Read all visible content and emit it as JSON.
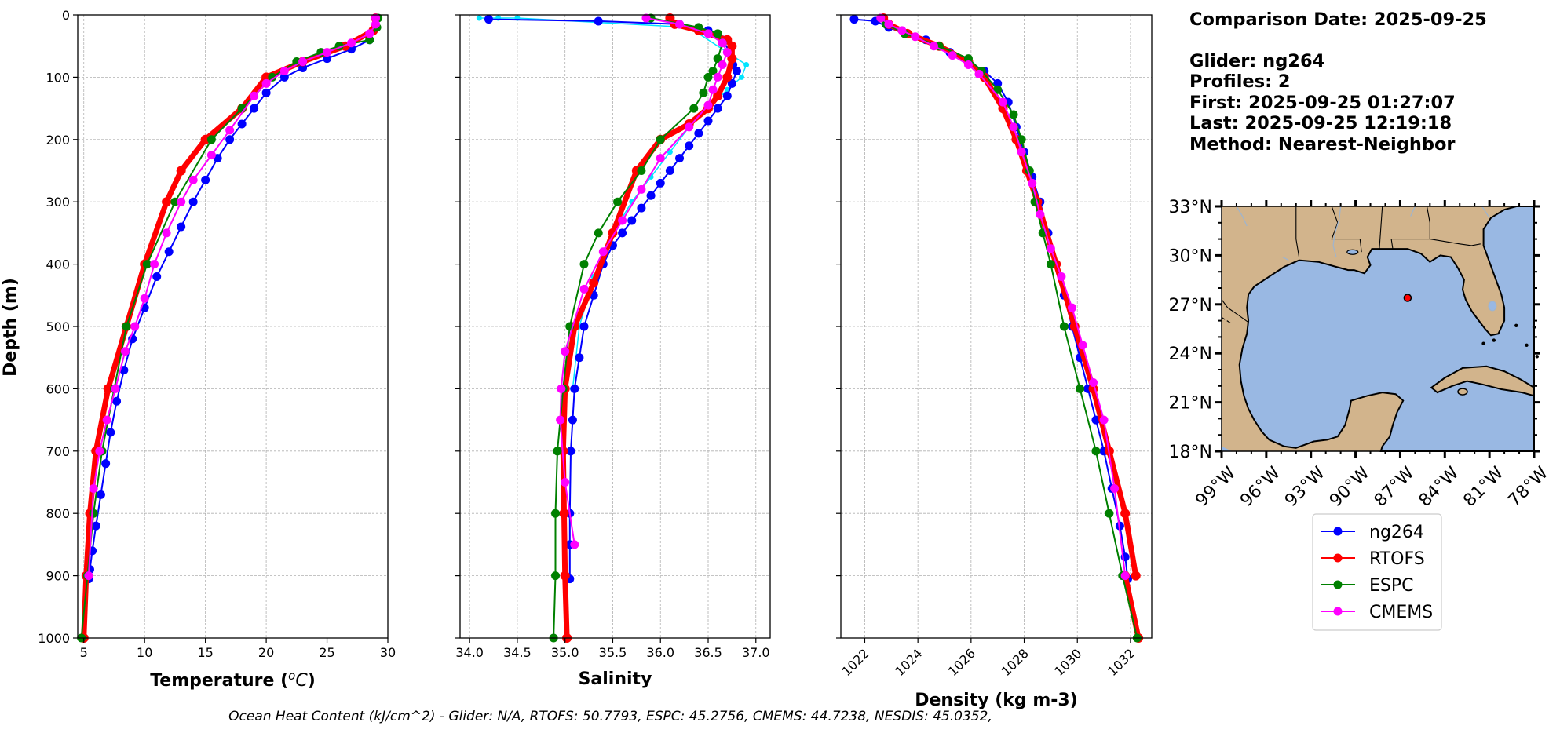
{
  "info": {
    "comparison_date": "Comparison Date: 2025-09-25",
    "glider": "Glider: ng264",
    "profiles": "Profiles: 2",
    "first": "First: 2025-09-25 01:27:07",
    "last": "Last: 2025-09-25 12:19:18",
    "method": "Method: Nearest-Neighbor"
  },
  "footer": "Ocean Heat Content (kJ/cm^2) - Glider: N/A,  RTOFS: 50.7793,  ESPC: 45.2756,  CMEMS: 44.7238,  NESDIS: 45.0352,",
  "colors": {
    "ng264": "#0000ff",
    "ng264_raw": "#00e5ff",
    "RTOFS": "#ff0000",
    "ESPC": "#008000",
    "CMEMS": "#ff00ff",
    "land": "#d2b48c",
    "water": "#99b8e3",
    "grid": "#b0b0b0"
  },
  "chart_data": [
    {
      "type": "line",
      "xlabel": "Temperature ($^{o}C$)",
      "ylabel": "Depth (m)",
      "xlim": [
        4.5,
        30
      ],
      "ylim": [
        1000,
        0
      ],
      "xticks": [
        "5",
        "10",
        "15",
        "20",
        "25",
        "30"
      ],
      "yticks": [
        "0",
        "100",
        "200",
        "300",
        "400",
        "500",
        "600",
        "700",
        "800",
        "900",
        "1000"
      ],
      "grid": true,
      "series": [
        {
          "name": "ng264",
          "x": [
            29.0,
            29.0,
            28.5,
            27.0,
            25.0,
            23.0,
            21.5,
            20.0,
            19.0,
            18.0,
            17.0,
            16.0,
            15.0,
            14.0,
            13.0,
            12.0,
            11.0,
            10.0,
            9.0,
            8.3,
            7.7,
            7.2,
            6.8,
            6.4,
            6.0,
            5.7,
            5.5,
            5.4
          ],
          "y": [
            5,
            20,
            40,
            55,
            70,
            85,
            100,
            125,
            150,
            175,
            200,
            230,
            265,
            300,
            340,
            380,
            420,
            470,
            520,
            570,
            620,
            670,
            720,
            770,
            820,
            860,
            890,
            905
          ]
        },
        {
          "name": "RTOFS",
          "x": [
            29.0,
            28.8,
            26.5,
            23.0,
            20.0,
            18.0,
            15.0,
            13.0,
            11.8,
            10.0,
            8.5,
            7.0,
            6.0,
            5.5,
            5.2,
            5.0
          ],
          "y": [
            5,
            25,
            50,
            75,
            100,
            150,
            200,
            250,
            300,
            400,
            500,
            600,
            700,
            800,
            900,
            1000
          ]
        },
        {
          "name": "ESPC",
          "x": [
            29.2,
            29.1,
            28.5,
            26.0,
            24.5,
            22.5,
            20.5,
            18.0,
            15.5,
            12.5,
            10.2,
            8.5,
            7.5,
            6.5,
            5.8,
            5.3,
            4.8
          ],
          "y": [
            5,
            20,
            40,
            50,
            60,
            75,
            100,
            150,
            200,
            300,
            400,
            500,
            600,
            700,
            800,
            900,
            1000
          ]
        },
        {
          "name": "CMEMS",
          "x": [
            29.0,
            29.0,
            28.5,
            27.0,
            25.0,
            23.0,
            21.5,
            20.0,
            19.0,
            17.0,
            15.5,
            14.0,
            13.0,
            11.8,
            10.8,
            10.0,
            9.2,
            8.4,
            7.6,
            6.9,
            6.3,
            5.8,
            5.4
          ],
          "y": [
            5,
            15,
            30,
            45,
            60,
            75,
            90,
            110,
            130,
            185,
            225,
            265,
            300,
            350,
            400,
            455,
            500,
            540,
            600,
            650,
            700,
            760,
            900
          ]
        }
      ]
    },
    {
      "type": "line",
      "xlabel": "Salinity",
      "xlim": [
        33.9,
        37.15
      ],
      "ylim": [
        1000,
        0
      ],
      "xticks": [
        "34.0",
        "34.5",
        "35.0",
        "35.5",
        "36.0",
        "36.5",
        "37.0"
      ],
      "grid": true,
      "series": [
        {
          "name": "ng264",
          "x": [
            34.2,
            35.35,
            36.2,
            36.5,
            36.65,
            36.73,
            36.76,
            36.8,
            36.75,
            36.7,
            36.6,
            36.5,
            36.4,
            36.3,
            36.2,
            36.1,
            36.0,
            35.9,
            35.8,
            35.7,
            35.6,
            35.5,
            35.4,
            35.3,
            35.2,
            35.15,
            35.1,
            35.08,
            35.06,
            35.05,
            35.05,
            35.05
          ],
          "y": [
            7,
            10,
            15,
            25,
            40,
            60,
            80,
            90,
            110,
            130,
            150,
            170,
            190,
            210,
            230,
            250,
            270,
            290,
            310,
            330,
            350,
            370,
            400,
            450,
            500,
            550,
            600,
            650,
            700,
            800,
            850,
            905
          ]
        },
        {
          "name": "ng264 raw",
          "x": [
            34.1,
            34.3,
            34.5,
            36.3,
            36.9,
            36.85,
            36.7,
            36.5,
            36.3,
            36.1,
            35.9,
            35.7,
            35.5,
            35.3,
            35.15,
            35.08
          ],
          "y": [
            5,
            5,
            5,
            20,
            80,
            100,
            120,
            150,
            180,
            220,
            260,
            300,
            350,
            420,
            500,
            600
          ]
        },
        {
          "name": "RTOFS",
          "x": [
            36.1,
            36.15,
            36.4,
            36.7,
            36.75,
            36.75,
            36.7,
            36.6,
            36.5,
            36.3,
            36.0,
            35.75,
            35.5,
            35.3,
            35.1,
            35.0,
            34.98,
            34.99,
            35.0,
            35.02
          ],
          "y": [
            5,
            15,
            25,
            40,
            50,
            70,
            100,
            130,
            150,
            175,
            200,
            250,
            350,
            430,
            500,
            600,
            700,
            800,
            900,
            1000
          ]
        },
        {
          "name": "ESPC",
          "x": [
            35.9,
            36.4,
            36.6,
            36.65,
            36.6,
            36.55,
            36.5,
            36.45,
            36.35,
            36.0,
            35.8,
            35.55,
            35.35,
            35.2,
            35.05,
            34.98,
            34.92,
            34.9,
            34.9,
            34.88
          ],
          "y": [
            5,
            20,
            30,
            45,
            70,
            90,
            100,
            125,
            150,
            200,
            250,
            300,
            350,
            400,
            500,
            600,
            700,
            800,
            900,
            1000
          ]
        },
        {
          "name": "CMEMS",
          "x": [
            35.85,
            36.2,
            36.5,
            36.65,
            36.7,
            36.65,
            36.6,
            36.55,
            36.5,
            36.3,
            36.0,
            35.8,
            35.6,
            35.4,
            35.2,
            35.0,
            34.96,
            34.95,
            35.0,
            35.1
          ],
          "y": [
            5,
            15,
            30,
            45,
            60,
            80,
            100,
            120,
            145,
            180,
            230,
            280,
            330,
            380,
            440,
            540,
            600,
            650,
            750,
            850
          ]
        }
      ]
    },
    {
      "type": "line",
      "xlabel": "Density (kg m-3)",
      "xlim": [
        1021.1,
        1032.8
      ],
      "ylim": [
        1000,
        0
      ],
      "xticks": [
        "1022",
        "1024",
        "1026",
        "1028",
        "1030",
        "1032"
      ],
      "grid": true,
      "series": [
        {
          "name": "ng264",
          "x": [
            1021.6,
            1022.4,
            1022.9,
            1023.5,
            1024.3,
            1025.2,
            1025.9,
            1026.5,
            1027.0,
            1027.4,
            1027.7,
            1028.0,
            1028.3,
            1028.6,
            1028.9,
            1029.2,
            1029.5,
            1029.8,
            1030.1,
            1030.4,
            1030.7,
            1031.0,
            1031.3,
            1031.6,
            1031.8,
            1031.9
          ],
          "y": [
            7,
            10,
            20,
            30,
            40,
            60,
            75,
            90,
            110,
            140,
            180,
            220,
            260,
            300,
            350,
            400,
            450,
            500,
            550,
            600,
            650,
            700,
            760,
            820,
            870,
            905
          ]
        },
        {
          "name": "RTOFS",
          "x": [
            1022.7,
            1022.9,
            1023.6,
            1024.8,
            1025.9,
            1026.5,
            1027.2,
            1027.7,
            1028.1,
            1028.5,
            1029.2,
            1029.9,
            1030.6,
            1031.2,
            1031.8,
            1032.2
          ],
          "y": [
            5,
            15,
            30,
            50,
            75,
            100,
            150,
            200,
            250,
            300,
            400,
            500,
            600,
            700,
            800,
            900
          ]
        },
        {
          "name": "RTOFS tail",
          "x": [
            1031.8,
            1032.3
          ],
          "y": [
            900,
            1000
          ]
        },
        {
          "name": "ESPC",
          "x": [
            1022.6,
            1022.8,
            1023.5,
            1024.8,
            1025.9,
            1026.4,
            1027.0,
            1027.6,
            1027.9,
            1028.2,
            1028.4,
            1028.7,
            1029.0,
            1029.5,
            1030.1,
            1030.7,
            1031.2,
            1031.7,
            1032.25
          ],
          "y": [
            5,
            15,
            30,
            50,
            70,
            90,
            120,
            160,
            200,
            250,
            300,
            350,
            400,
            500,
            600,
            700,
            800,
            900,
            1000
          ]
        },
        {
          "name": "CMEMS",
          "x": [
            1022.6,
            1022.9,
            1023.4,
            1023.9,
            1024.6,
            1025.3,
            1025.9,
            1026.3,
            1027.2,
            1027.6,
            1027.9,
            1028.3,
            1028.6,
            1029.0,
            1029.4,
            1029.8,
            1030.2,
            1030.6,
            1031.0,
            1031.4,
            1031.8
          ],
          "y": [
            5,
            15,
            25,
            35,
            50,
            65,
            80,
            95,
            140,
            180,
            220,
            270,
            320,
            375,
            420,
            470,
            530,
            590,
            650,
            760,
            900
          ]
        }
      ]
    }
  ],
  "map": {
    "xticks": [
      "99°W",
      "96°W",
      "93°W",
      "90°W",
      "87°W",
      "84°W",
      "81°W",
      "78°W"
    ],
    "yticks": [
      "33°N",
      "30°N",
      "27°N",
      "24°N",
      "21°N",
      "18°N"
    ],
    "lon_range": [
      -99,
      -78
    ],
    "lat_range": [
      18,
      33
    ],
    "glider_position": {
      "lon": -86.5,
      "lat": 27.4
    }
  },
  "legend": [
    "ng264",
    "RTOFS",
    "ESPC",
    "CMEMS"
  ]
}
